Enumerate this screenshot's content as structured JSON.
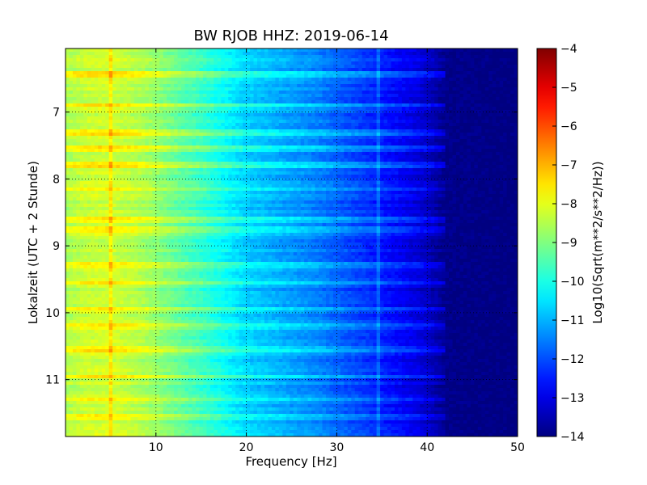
{
  "chart_data": {
    "type": "heatmap",
    "title": "BW RJOB HHZ: 2019-06-14",
    "xlabel": "Frequency [Hz]",
    "ylabel": "Lokalzeit (UTC + 2 Stunde)",
    "xlim": [
      0,
      50
    ],
    "ylim": [
      6.05,
      11.85
    ],
    "y_inverted": true,
    "x_ticks": [
      10,
      20,
      30,
      40,
      50
    ],
    "y_ticks": [
      7,
      8,
      9,
      10,
      11
    ],
    "grid": true,
    "colormap": "jet",
    "colorbar": {
      "label": "Log10(Sqrt(m**2/s**2/Hz))",
      "range": [
        -14,
        -4
      ],
      "ticks": [
        -14,
        -13,
        -12,
        -11,
        -10,
        -9,
        -8,
        -7,
        -6,
        -5,
        -4
      ]
    },
    "spectrum_profile": {
      "frequency_hz": [
        0,
        2,
        5,
        8,
        10,
        12,
        15,
        18,
        20,
        22,
        25,
        28,
        30,
        33,
        35,
        37,
        39,
        40,
        41,
        42,
        50
      ],
      "log10_psd": [
        -8.6,
        -8.3,
        -8.2,
        -8.5,
        -8.8,
        -9.2,
        -9.7,
        -10.3,
        -10.7,
        -10.9,
        -11.2,
        -11.5,
        -11.8,
        -12.2,
        -12.5,
        -12.8,
        -13.1,
        -13.3,
        -13.6,
        -13.9,
        -14.0
      ]
    },
    "broadband_events_local_hours": [
      6.45,
      6.9,
      7.3,
      7.55,
      7.8,
      8.15,
      8.6,
      8.75,
      9.3,
      9.55,
      9.95,
      10.2,
      10.55,
      10.95,
      11.3,
      11.55
    ],
    "narrowband_lines_hz": [
      5.0,
      34.5
    ]
  }
}
